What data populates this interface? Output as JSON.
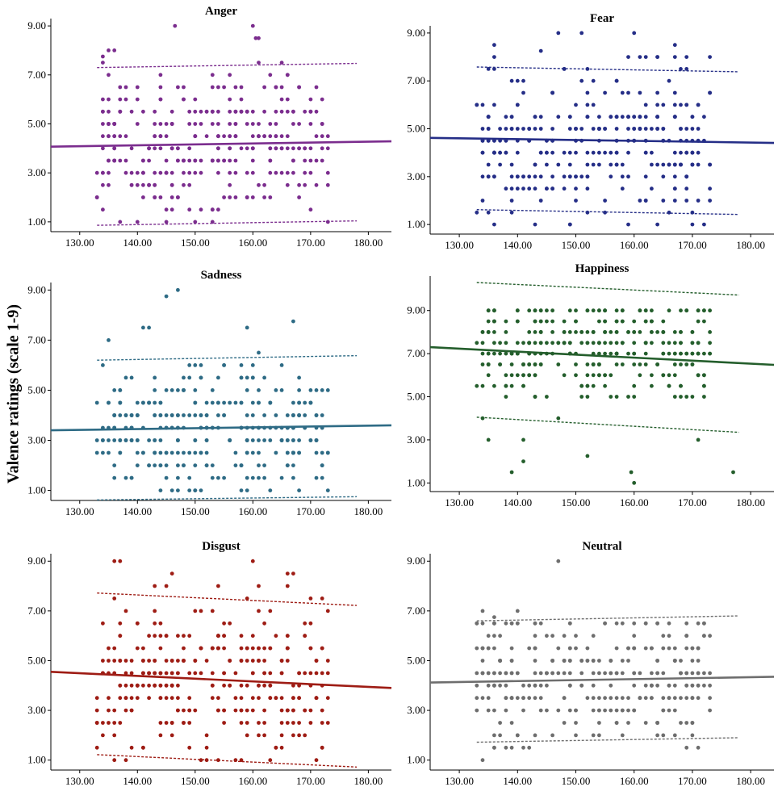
{
  "figure": {
    "ylabel": "Valence ratings (scale 1-9)"
  },
  "chart_data": [
    {
      "type": "scatter",
      "title": "Anger",
      "color": "#7b2d8e",
      "xlim": [
        125,
        184
      ],
      "ylim": [
        0.6,
        9.3
      ],
      "xticks": [
        "130.00",
        "140.00",
        "150.00",
        "160.00",
        "170.00",
        "180.00"
      ],
      "yticks": [
        "1.00",
        "3.00",
        "5.00",
        "7.00",
        "9.00"
      ],
      "x_range": [
        133,
        178
      ],
      "fit": {
        "x": [
          125,
          184
        ],
        "y": [
          4.07,
          4.29
        ]
      },
      "ci_upper": {
        "x": [
          133,
          178
        ],
        "y": [
          7.3,
          7.47
        ]
      },
      "ci_lower": {
        "x": [
          133,
          178
        ],
        "y": [
          0.86,
          1.04
        ]
      },
      "points": [
        [
          146.5,
          9
        ],
        [
          160,
          9
        ],
        [
          160.5,
          8.5
        ],
        [
          134,
          7.75
        ],
        [
          161,
          8.5
        ]
      ],
      "point_params": {
        "seed": 11,
        "n": 330,
        "mean": 4.2,
        "sd": 1.55,
        "step": 0.5,
        "lo": 1,
        "hi": 8
      }
    },
    {
      "type": "scatter",
      "title": "Fear",
      "color": "#252e87",
      "xlim": [
        125,
        184
      ],
      "ylim": [
        0.6,
        9.3
      ],
      "xticks": [
        "130.00",
        "140.00",
        "150.00",
        "160.00",
        "170.00",
        "180.00"
      ],
      "yticks": [
        "1.00",
        "3.00",
        "5.00",
        "7.00",
        "9.00"
      ],
      "x_range": [
        133,
        178
      ],
      "fit": {
        "x": [
          125,
          184
        ],
        "y": [
          4.62,
          4.41
        ]
      },
      "ci_upper": {
        "x": [
          133,
          178
        ],
        "y": [
          7.58,
          7.38
        ]
      },
      "ci_lower": {
        "x": [
          133,
          178
        ],
        "y": [
          1.62,
          1.42
        ]
      },
      "points": [
        [
          147,
          9
        ],
        [
          151,
          9
        ],
        [
          160,
          9
        ],
        [
          136,
          8.5
        ],
        [
          144,
          8.25
        ],
        [
          167,
          8.5
        ]
      ],
      "point_params": {
        "seed": 23,
        "n": 330,
        "mean": 4.5,
        "sd": 1.5,
        "step": 0.5,
        "lo": 1,
        "hi": 8
      }
    },
    {
      "type": "scatter",
      "title": "Sadness",
      "color": "#2e6b85",
      "xlim": [
        125,
        184
      ],
      "ylim": [
        0.6,
        9.3
      ],
      "xticks": [
        "130.00",
        "140.00",
        "150.00",
        "160.00",
        "170.00",
        "180.00"
      ],
      "yticks": [
        "1.00",
        "3.00",
        "5.00",
        "7.00",
        "9.00"
      ],
      "x_range": [
        133,
        178
      ],
      "fit": {
        "x": [
          125,
          184
        ],
        "y": [
          3.4,
          3.6
        ]
      },
      "ci_upper": {
        "x": [
          133,
          178
        ],
        "y": [
          6.2,
          6.38
        ]
      },
      "ci_lower": {
        "x": [
          133,
          178
        ],
        "y": [
          0.62,
          0.75
        ]
      },
      "points": [
        [
          147,
          9
        ],
        [
          145,
          8.75
        ],
        [
          141,
          7.5
        ],
        [
          142,
          7.5
        ],
        [
          159,
          7.5
        ],
        [
          167,
          7.75
        ]
      ],
      "point_params": {
        "seed": 37,
        "n": 330,
        "mean": 3.3,
        "sd": 1.25,
        "step": 0.5,
        "lo": 1,
        "hi": 7
      }
    },
    {
      "type": "scatter",
      "title": "Happiness",
      "color": "#245e2c",
      "xlim": [
        125,
        184
      ],
      "ylim": [
        0.6,
        10.6
      ],
      "xticks": [
        "130.00",
        "140.00",
        "150.00",
        "160.00",
        "170.00",
        "180.00"
      ],
      "yticks": [
        "1.00",
        "3.00",
        "5.00",
        "7.00",
        "9.00"
      ],
      "x_range": [
        133,
        178
      ],
      "fit": {
        "x": [
          125,
          184
        ],
        "y": [
          7.3,
          6.48
        ]
      },
      "ci_upper": {
        "x": [
          133,
          178
        ],
        "y": [
          10.3,
          9.72
        ]
      },
      "ci_lower": {
        "x": [
          133,
          178
        ],
        "y": [
          4.05,
          3.35
        ]
      },
      "points": [
        [
          139,
          1.5
        ],
        [
          177,
          1.5
        ],
        [
          160,
          1
        ],
        [
          159.5,
          1.5
        ],
        [
          141,
          2
        ],
        [
          152,
          2.25
        ],
        [
          135,
          3
        ],
        [
          141,
          3
        ]
      ],
      "point_params": {
        "seed": 41,
        "n": 330,
        "mean": 7.2,
        "sd": 1.3,
        "step": 0.5,
        "lo": 3,
        "hi": 9
      }
    },
    {
      "type": "scatter",
      "title": "Disgust",
      "color": "#9e1c14",
      "xlim": [
        125,
        184
      ],
      "ylim": [
        0.6,
        9.3
      ],
      "xticks": [
        "130.00",
        "140.00",
        "150.00",
        "160.00",
        "170.00",
        "180.00"
      ],
      "yticks": [
        "1.00",
        "3.00",
        "5.00",
        "7.00",
        "9.00"
      ],
      "x_range": [
        133,
        178
      ],
      "fit": {
        "x": [
          125,
          184
        ],
        "y": [
          4.55,
          3.9
        ]
      },
      "ci_upper": {
        "x": [
          133,
          178
        ],
        "y": [
          7.72,
          7.22
        ]
      },
      "ci_lower": {
        "x": [
          133,
          178
        ],
        "y": [
          1.22,
          0.72
        ]
      },
      "points": [
        [
          136,
          9
        ],
        [
          137,
          9
        ],
        [
          160,
          9
        ],
        [
          166,
          8.5
        ],
        [
          167,
          8.5
        ],
        [
          146,
          8.5
        ],
        [
          143,
          8
        ],
        [
          145,
          8
        ]
      ],
      "point_params": {
        "seed": 53,
        "n": 330,
        "mean": 4.2,
        "sd": 1.5,
        "step": 0.5,
        "lo": 1,
        "hi": 8
      }
    },
    {
      "type": "scatter",
      "title": "Neutral",
      "color": "#6e6e6e",
      "xlim": [
        125,
        184
      ],
      "ylim": [
        0.6,
        9.3
      ],
      "xticks": [
        "130.00",
        "140.00",
        "150.00",
        "160.00",
        "170.00",
        "180.00"
      ],
      "yticks": [
        "1.00",
        "3.00",
        "5.00",
        "7.00",
        "9.00"
      ],
      "x_range": [
        133,
        178
      ],
      "fit": {
        "x": [
          125,
          184
        ],
        "y": [
          4.12,
          4.35
        ]
      },
      "ci_upper": {
        "x": [
          133,
          178
        ],
        "y": [
          6.6,
          6.8
        ]
      },
      "ci_lower": {
        "x": [
          133,
          178
        ],
        "y": [
          1.72,
          1.9
        ]
      },
      "points": [
        [
          147,
          9
        ],
        [
          134,
          7
        ],
        [
          140,
          7
        ],
        [
          136,
          6.75
        ]
      ],
      "point_params": {
        "seed": 67,
        "n": 320,
        "mean": 4.3,
        "sd": 1.25,
        "step": 0.5,
        "lo": 1,
        "hi": 6.5
      }
    }
  ]
}
